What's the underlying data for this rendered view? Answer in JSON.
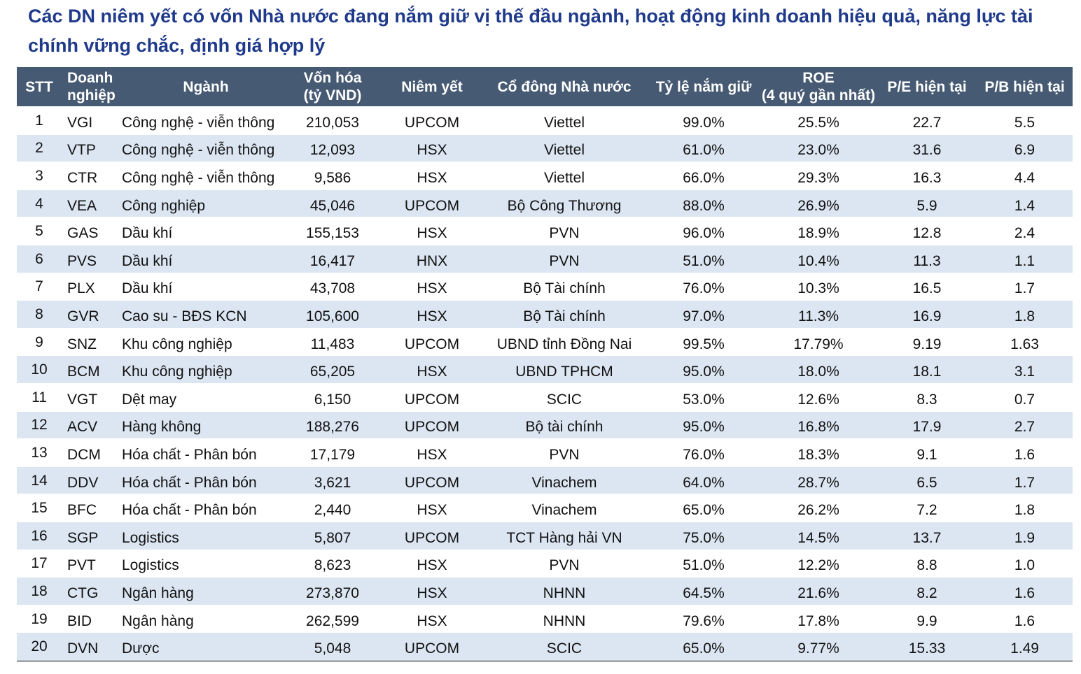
{
  "title": "Các DN niêm yết có vốn Nhà nước đang nắm giữ vị thế đầu ngành, hoạt động kinh doanh hiệu quả, năng lực tài chính vững chắc, định giá hợp lý",
  "table": {
    "header": [
      [
        "STT"
      ],
      [
        "Doanh",
        "nghiệp"
      ],
      [
        "Ngành"
      ],
      [
        "Vốn hóa",
        "(tỷ VND)"
      ],
      [
        "Niêm yết"
      ],
      [
        "Cổ đông Nhà nước"
      ],
      [
        "Tỷ lệ nắm giữ"
      ],
      [
        "ROE",
        "(4 quý gần nhất)"
      ],
      [
        "P/E hiện tại"
      ],
      [
        "P/B hiện tại"
      ]
    ],
    "rows": [
      [
        "1",
        "VGI",
        "Công nghệ - viễn thông",
        "210,053",
        "UPCOM",
        "Viettel",
        "99.0%",
        "25.5%",
        "22.7",
        "5.5"
      ],
      [
        "2",
        "VTP",
        "Công nghệ - viễn thông",
        "12,093",
        "HSX",
        "Viettel",
        "61.0%",
        "23.0%",
        "31.6",
        "6.9"
      ],
      [
        "3",
        "CTR",
        "Công nghệ - viễn thông",
        "9,586",
        "HSX",
        "Viettel",
        "66.0%",
        "29.3%",
        "16.3",
        "4.4"
      ],
      [
        "4",
        "VEA",
        "Công nghiệp",
        "45,046",
        "UPCOM",
        "Bộ Công Thương",
        "88.0%",
        "26.9%",
        "5.9",
        "1.4"
      ],
      [
        "5",
        "GAS",
        "Dầu khí",
        "155,153",
        "HSX",
        "PVN",
        "96.0%",
        "18.9%",
        "12.8",
        "2.4"
      ],
      [
        "6",
        "PVS",
        "Dầu khí",
        "16,417",
        "HNX",
        "PVN",
        "51.0%",
        "10.4%",
        "11.3",
        "1.1"
      ],
      [
        "7",
        "PLX",
        "Dầu khí",
        "43,708",
        "HSX",
        "Bộ Tài chính",
        "76.0%",
        "10.3%",
        "16.5",
        "1.7"
      ],
      [
        "8",
        "GVR",
        "Cao su - BĐS KCN",
        "105,600",
        "HSX",
        "Bộ Tài chính",
        "97.0%",
        "11.3%",
        "16.9",
        "1.8"
      ],
      [
        "9",
        "SNZ",
        "Khu công nghiệp",
        "11,483",
        "UPCOM",
        "UBND tỉnh Đồng Nai",
        "99.5%",
        "17.79%",
        "9.19",
        "1.63"
      ],
      [
        "10",
        "BCM",
        "Khu công nghiệp",
        "65,205",
        "HSX",
        "UBND TPHCM",
        "95.0%",
        "18.0%",
        "18.1",
        "3.1"
      ],
      [
        "11",
        "VGT",
        "Dệt may",
        "6,150",
        "UPCOM",
        "SCIC",
        "53.0%",
        "12.6%",
        "8.3",
        "0.7"
      ],
      [
        "12",
        "ACV",
        "Hàng không",
        "188,276",
        "UPCOM",
        "Bộ tài chính",
        "95.0%",
        "16.8%",
        "17.9",
        "2.7"
      ],
      [
        "13",
        "DCM",
        "Hóa chất - Phân bón",
        "17,179",
        "HSX",
        "PVN",
        "76.0%",
        "18.3%",
        "9.1",
        "1.6"
      ],
      [
        "14",
        "DDV",
        "Hóa chất - Phân bón",
        "3,621",
        "UPCOM",
        "Vinachem",
        "64.0%",
        "28.7%",
        "6.5",
        "1.7"
      ],
      [
        "15",
        "BFC",
        "Hóa chất - Phân bón",
        "2,440",
        "HSX",
        "Vinachem",
        "65.0%",
        "26.2%",
        "7.2",
        "1.8"
      ],
      [
        "16",
        "SGP",
        "Logistics",
        "5,807",
        "UPCOM",
        "TCT Hàng hải VN",
        "75.0%",
        "14.5%",
        "13.7",
        "1.9"
      ],
      [
        "17",
        "PVT",
        "Logistics",
        "8,623",
        "HSX",
        "PVN",
        "51.0%",
        "12.2%",
        "8.8",
        "1.0"
      ],
      [
        "18",
        "CTG",
        "Ngân hàng",
        "273,870",
        "HSX",
        "NHNN",
        "64.5%",
        "21.6%",
        "8.2",
        "1.6"
      ],
      [
        "19",
        "BID",
        "Ngân hàng",
        "262,599",
        "HSX",
        "NHNN",
        "79.6%",
        "17.8%",
        "9.9",
        "1.6"
      ],
      [
        "20",
        "DVN",
        "Dược",
        "5,048",
        "UPCOM",
        "SCIC",
        "65.0%",
        "9.77%",
        "15.33",
        "1.49"
      ]
    ]
  }
}
